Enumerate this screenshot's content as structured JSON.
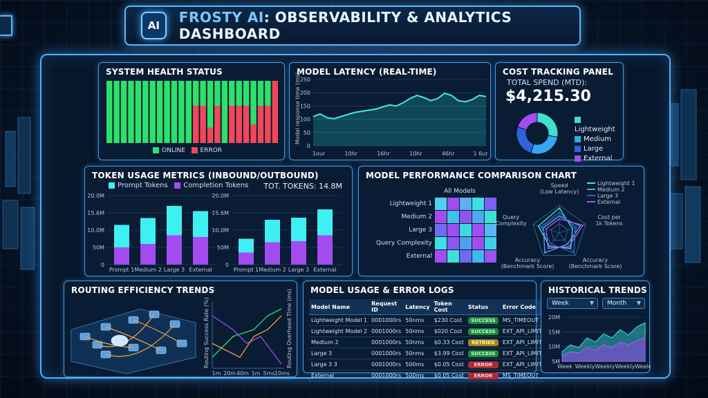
{
  "header": {
    "logo_text": "AI",
    "title_prefix": "FROSTY AI",
    "title_rest": ": OBSERVABILITY & ANALYTICS DASHBOARD"
  },
  "colors": {
    "online": "#2ee06a",
    "error": "#f0485a",
    "prompt": "#3ef0f2",
    "completion": "#a24cf0",
    "accent": "#4fb0ff"
  },
  "system_health": {
    "title": "SYSTEM HEALTH STATUS",
    "legend_online": "ONLINE",
    "legend_error": "ERROR",
    "bars": [
      [
        0.0
      ],
      [
        0.0
      ],
      [
        0.0
      ],
      [
        0.0
      ],
      [
        0.0
      ],
      [
        0.0
      ],
      [
        0.0
      ],
      [
        0.0
      ],
      [
        0.0
      ],
      [
        0.0
      ],
      [
        0.0
      ],
      [
        0.0
      ],
      [
        0.6
      ],
      [
        0.6
      ],
      [
        0.25
      ],
      [
        0.6
      ],
      [
        0.0
      ],
      [
        0.6
      ],
      [
        0.6
      ],
      [
        0.6
      ],
      [
        0.3
      ],
      [
        0.6
      ],
      [
        0.6
      ],
      [
        1.0
      ]
    ]
  },
  "latency": {
    "title": "MODEL LATENCY (REAL-TIME)",
    "ylabel": "Model response time (ms)",
    "yticks": [
      "250",
      "200",
      "150",
      "100",
      "50",
      "0"
    ],
    "xticks": [
      "1our",
      "10hr",
      "16hr",
      "10hr",
      "46hr",
      "1 6ur"
    ]
  },
  "cost": {
    "title": "COST TRACKING PANEL",
    "subtitle": "TOTAL SPEND (MTD):",
    "total": "$4,215.30",
    "legend": [
      "Lightweight",
      "Medium",
      "Large",
      "External"
    ],
    "colors": [
      "#3fe0d0",
      "#35a9f0",
      "#2f64d8",
      "#a44cf0"
    ]
  },
  "token": {
    "title": "TOKEN USAGE METRICS (INBOUND/OUTBOUND)",
    "legend_prompt": "Prompt Tokens",
    "legend_completion": "Completion Tokens",
    "total": "TOT. TOKENS: 14.8M",
    "left_yticks": [
      "20.0M",
      "15.6M",
      "10.0M",
      "50M",
      "0"
    ],
    "right_yticks": [
      "20.0M",
      "15.6M",
      "10.0M",
      "50M",
      "0"
    ],
    "categories": [
      "Prompt 1",
      "Medium 2",
      "Large 3",
      "External"
    ]
  },
  "perf": {
    "title": "MODEL PERFORMANCE COMPARISON CHART",
    "heatmap_title": "All Models",
    "rows": [
      "Lightweight 1",
      "Medium 2",
      "Large 3",
      "Query Complexity",
      "External"
    ],
    "radar_labels": {
      "speed": "Speed",
      "speed_sub": "(Low Latency)",
      "cost": "Cost per",
      "cost_sub": "1k Tokens",
      "acc_r": "Accuracy",
      "acc_r_sub": "(Benchmark Score)",
      "acc_l": "Accuracy",
      "acc_l_sub": "(Benchmark Score)",
      "query": "Query",
      "query_sub": "Complexity"
    },
    "radar_legend": [
      "Lightweight 1",
      "Medium 2",
      "Large 3",
      "External"
    ]
  },
  "routing": {
    "title": "ROUTING EFFICIENCY TRENDS",
    "ylabel_left": "Routing Success Rate (%)",
    "ylabel_right": "Routing Overhead Time (ms)",
    "xticks": [
      "1m",
      "20m",
      "40m",
      "1m",
      "5ms",
      "10ms"
    ]
  },
  "logs": {
    "title": "MODEL USAGE & ERROR LOGS",
    "headers": [
      "Model Name",
      "Request ID",
      "Latency",
      "Token Cost",
      "Status",
      "Error Code"
    ],
    "rows": [
      [
        "Lightweight Model 1",
        "0001000rs",
        "50nms",
        "$230 Cost",
        "SUCCESS",
        "MS_TIMEOUT"
      ],
      [
        "Lightweight Model 2",
        "0001000rs",
        "50nms",
        "$020 Cost",
        "SUCCESS",
        "EXT_API_LIMIT"
      ],
      [
        "Medium 2",
        "0001000rs",
        "50nms",
        "$0.33 Cost",
        "RETRIED",
        "EXT_API_LIMIT"
      ],
      [
        "Large 3",
        "0001000rs",
        "50nms",
        "$3.99 Cost",
        "SUCCESS",
        "EXT_API_LIMIT"
      ],
      [
        "Large 3 3",
        "0001000rs",
        "500ms",
        "$0.05 Cost",
        "ERROR",
        "EXT_API_LIMIT"
      ],
      [
        "External",
        "0001000rs",
        "500ms",
        "$0.05 Cost",
        "ERROR",
        "MS_TIMEOUT"
      ]
    ]
  },
  "historical": {
    "title": "HISTORICAL TRENDS",
    "dropdown1": "Week",
    "dropdown2": "Month",
    "yticks": [
      "20M",
      "15M",
      "10M",
      "5M"
    ],
    "xticks": [
      "Week",
      "Weekly",
      "Weekly",
      "Weekly",
      "Weelee"
    ]
  }
}
